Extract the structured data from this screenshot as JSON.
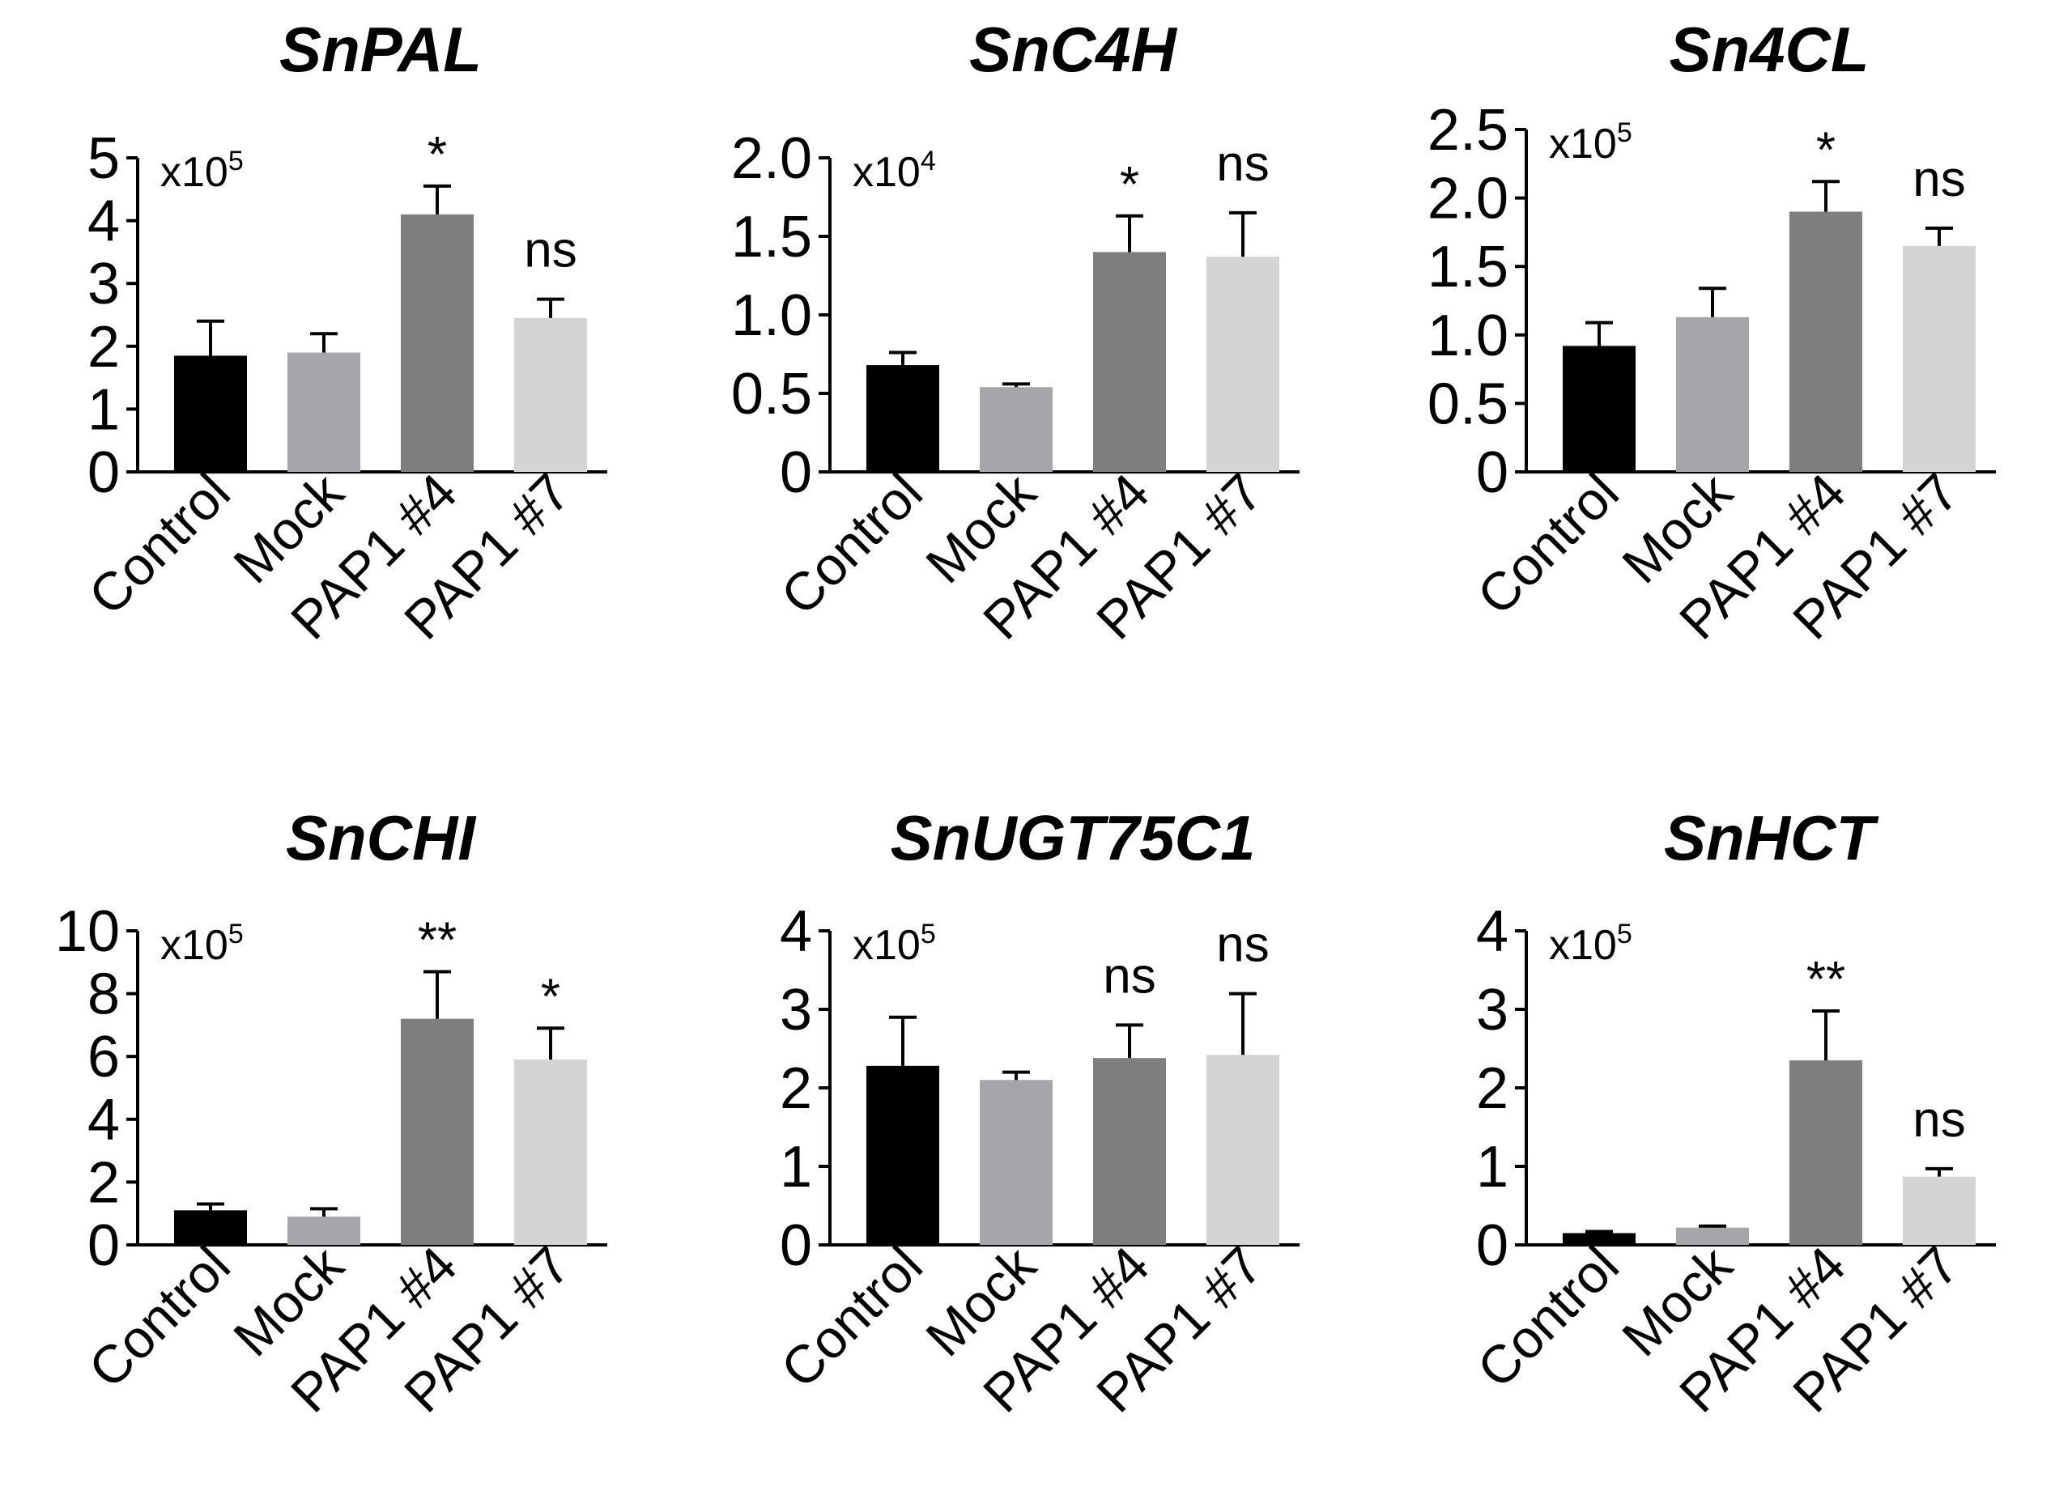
{
  "figure_caption": "",
  "chart_data": [
    {
      "type": "bar",
      "title": "SnPAL",
      "multiplier": "x10",
      "exponent": "5",
      "categories": [
        "Control",
        "Mock",
        "PAP1 #4",
        "PAP1 #7"
      ],
      "values": [
        1.85,
        1.9,
        4.1,
        2.45
      ],
      "errors": [
        0.55,
        0.3,
        0.45,
        0.3
      ],
      "significance": [
        "",
        "",
        "*",
        "ns"
      ],
      "yticks": [
        "0",
        "1",
        "2",
        "3",
        "4",
        "5"
      ],
      "ylim": [
        0,
        5
      ],
      "colors": [
        "#000000",
        "#a6a6aa",
        "#7e7e7e",
        "#d4d4d4"
      ]
    },
    {
      "type": "bar",
      "title": "SnC4H",
      "multiplier": "x10",
      "exponent": "4",
      "categories": [
        "Control",
        "Mock",
        "PAP1 #4",
        "PAP1 #7"
      ],
      "values": [
        0.68,
        0.54,
        1.4,
        1.37
      ],
      "errors": [
        0.08,
        0.02,
        0.23,
        0.28
      ],
      "significance": [
        "",
        "",
        "*",
        "ns"
      ],
      "yticks": [
        "0",
        "0.5",
        "1.0",
        "1.5",
        "2.0"
      ],
      "ylim": [
        0,
        2.0
      ],
      "colors": [
        "#000000",
        "#a6a6aa",
        "#7e7e7e",
        "#d4d4d4"
      ]
    },
    {
      "type": "bar",
      "title": "Sn4CL",
      "multiplier": "x10",
      "exponent": "5",
      "categories": [
        "Control",
        "Mock",
        "PAP1 #4",
        "PAP1 #7"
      ],
      "values": [
        0.92,
        1.13,
        1.9,
        1.65
      ],
      "errors": [
        0.17,
        0.21,
        0.22,
        0.13
      ],
      "significance": [
        "",
        "",
        "*",
        "ns"
      ],
      "yticks": [
        "0",
        "0.5",
        "1.0",
        "1.5",
        "2.0",
        "2.5"
      ],
      "ylim": [
        0,
        2.5
      ],
      "colors": [
        "#000000",
        "#a6a6aa",
        "#7e7e7e",
        "#d4d4d4"
      ]
    },
    {
      "type": "bar",
      "title": "SnCHI",
      "multiplier": "x10",
      "exponent": "5",
      "categories": [
        "Control",
        "Mock",
        "PAP1 #4",
        "PAP1 #7"
      ],
      "values": [
        1.1,
        0.9,
        7.2,
        5.9
      ],
      "errors": [
        0.2,
        0.25,
        1.5,
        1.0
      ],
      "significance": [
        "",
        "",
        "**",
        "*"
      ],
      "yticks": [
        "0",
        "2",
        "4",
        "6",
        "8",
        "10"
      ],
      "ylim": [
        0,
        10
      ],
      "colors": [
        "#000000",
        "#a6a6aa",
        "#7e7e7e",
        "#d4d4d4"
      ]
    },
    {
      "type": "bar",
      "title": "SnUGT75C1",
      "multiplier": "x10",
      "exponent": "5",
      "categories": [
        "Control",
        "Mock",
        "PAP1 #4",
        "PAP1 #7"
      ],
      "values": [
        2.28,
        2.1,
        2.38,
        2.42
      ],
      "errors": [
        0.62,
        0.1,
        0.42,
        0.78
      ],
      "significance": [
        "",
        "",
        "ns",
        "ns"
      ],
      "yticks": [
        "0",
        "1",
        "2",
        "3",
        "4"
      ],
      "ylim": [
        0,
        4
      ],
      "colors": [
        "#000000",
        "#a6a6aa",
        "#7e7e7e",
        "#d4d4d4"
      ]
    },
    {
      "type": "bar",
      "title": "SnHCT",
      "multiplier": "x10",
      "exponent": "5",
      "categories": [
        "Control",
        "Mock",
        "PAP1 #4",
        "PAP1 #7"
      ],
      "values": [
        0.15,
        0.22,
        2.35,
        0.87
      ],
      "errors": [
        0.02,
        0.02,
        0.63,
        0.1
      ],
      "significance": [
        "",
        "",
        "**",
        "ns"
      ],
      "yticks": [
        "0",
        "1",
        "2",
        "3",
        "4"
      ],
      "ylim": [
        0,
        4
      ],
      "colors": [
        "#000000",
        "#a6a6aa",
        "#7e7e7e",
        "#d4d4d4"
      ]
    }
  ]
}
